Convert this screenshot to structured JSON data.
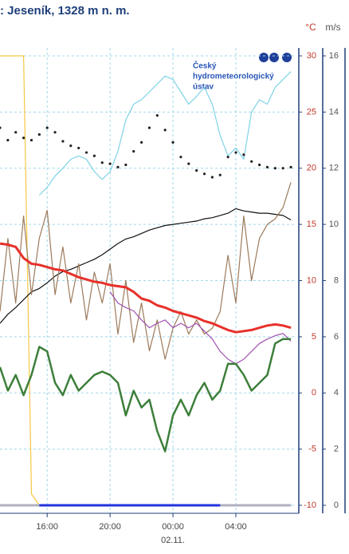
{
  "chart_data": {
    "type": "line",
    "title": ": Jeseník, 1328 m n. m.",
    "x": [
      13,
      13.5,
      14,
      14.5,
      15,
      15.5,
      16,
      16.5,
      17,
      17.5,
      18,
      18.5,
      19,
      19.5,
      20,
      20.5,
      21,
      21.5,
      22,
      22.5,
      23,
      23.5,
      24,
      24.5,
      25,
      25.5,
      26,
      26.5,
      27,
      27.5,
      28,
      28.5,
      29,
      29.5,
      30,
      30.5,
      31,
      31.5
    ],
    "xlim": [
      13,
      31.75
    ],
    "xticks": [
      {
        "value": 16,
        "label": "16:00"
      },
      {
        "value": 20,
        "label": "20:00"
      },
      {
        "value": 24,
        "label": "00:00"
      },
      {
        "value": 28,
        "label": "04:00"
      }
    ],
    "date_label": "02.11.",
    "y_unit": "°C",
    "y2_unit": "m/s",
    "ylim": [
      -10,
      30
    ],
    "yticks": [
      -10,
      -5,
      0,
      5,
      10,
      15,
      20,
      25,
      30
    ],
    "y2lim": [
      0,
      16
    ],
    "y2ticks": [
      0,
      2,
      4,
      6,
      8,
      10,
      12,
      14,
      16
    ],
    "grid": true,
    "series": [
      {
        "color": "#f5c842",
        "values": [
          30,
          30,
          30,
          30,
          -9,
          -10,
          null,
          null,
          null,
          null,
          null,
          null,
          null,
          null,
          null,
          null,
          null,
          null,
          null,
          null,
          null,
          null,
          null,
          null,
          null,
          null,
          null,
          null,
          null,
          null,
          null,
          null,
          null,
          null,
          null,
          null,
          null,
          null
        ]
      },
      {
        "color": "#7fd3e6",
        "values": [
          null,
          null,
          null,
          null,
          null,
          17.6,
          18.3,
          19.3,
          20.0,
          20.8,
          21.1,
          20.8,
          19.7,
          19.0,
          19.7,
          21.5,
          24.3,
          25.7,
          26.1,
          26.8,
          27.5,
          28.2,
          27.9,
          26.8,
          25.7,
          26.4,
          27.2,
          25.7,
          22.9,
          21.1,
          21.8,
          20.8,
          25.0,
          26.1,
          25.7,
          27.2,
          27.9,
          28.6
        ]
      },
      {
        "color": "#222222",
        "style": "dots",
        "values": [
          23.6,
          22.5,
          23.2,
          22.7,
          22.5,
          23.0,
          23.6,
          23.2,
          22.4,
          22.0,
          21.8,
          21.4,
          21.1,
          20.5,
          20.4,
          20.1,
          20.3,
          21.5,
          22.3,
          23.6,
          24.7,
          23.4,
          22.3,
          21.0,
          20.4,
          19.8,
          19.5,
          19.2,
          19.4,
          21.0,
          21.4,
          21.2,
          20.6,
          20.3,
          20.1,
          20.0,
          20.0,
          20.1
        ]
      },
      {
        "color": "#111111",
        "values": [
          6.2,
          7.0,
          7.6,
          8.3,
          9.0,
          9.3,
          9.8,
          10.4,
          10.8,
          11.0,
          11.3,
          11.6,
          11.9,
          12.3,
          12.8,
          13.3,
          13.7,
          13.9,
          14.2,
          14.5,
          14.7,
          14.9,
          15.0,
          15.1,
          15.2,
          15.3,
          15.5,
          15.6,
          15.8,
          16.0,
          16.4,
          16.2,
          16.1,
          16.0,
          16.0,
          15.9,
          15.8,
          15.4
        ]
      },
      {
        "color": "#9c7a5b",
        "axis": "y2",
        "values": [
          6.9,
          9.5,
          7.2,
          10.3,
          7.5,
          9.5,
          10.5,
          7.5,
          9.2,
          7.2,
          8.6,
          6.6,
          8.3,
          7.2,
          8.6,
          6.1,
          8.0,
          5.8,
          7.2,
          5.5,
          6.6,
          5.2,
          6.3,
          6.9,
          6.1,
          6.6,
          6.1,
          6.3,
          6.9,
          8.9,
          7.2,
          10.3,
          8.0,
          9.5,
          10.0,
          10.2,
          10.6,
          11.5
        ]
      },
      {
        "color": "#a050b0",
        "values": [
          null,
          null,
          null,
          null,
          null,
          null,
          null,
          null,
          null,
          null,
          null,
          null,
          null,
          null,
          9.0,
          8.0,
          7.6,
          7.3,
          6.5,
          5.8,
          6.2,
          6.5,
          5.8,
          6.2,
          5.8,
          6.2,
          5.5,
          4.8,
          3.7,
          3.0,
          2.6,
          3.0,
          3.7,
          4.4,
          4.8,
          5.1,
          5.3,
          4.6
        ]
      },
      {
        "color": "#e8302a",
        "width": 3,
        "values": [
          13.3,
          13.2,
          13.0,
          12.0,
          11.5,
          11.4,
          11.2,
          11.0,
          10.9,
          10.6,
          10.3,
          10.1,
          9.9,
          9.8,
          9.6,
          9.5,
          9.4,
          9.0,
          8.4,
          8.2,
          7.8,
          7.6,
          7.3,
          7.1,
          6.9,
          6.7,
          6.4,
          6.2,
          5.9,
          5.6,
          5.4,
          5.5,
          5.6,
          5.8,
          6.0,
          6.1,
          6.0,
          5.8
        ]
      },
      {
        "color": "#3d7f3a",
        "width": 2.5,
        "values": [
          2.3,
          0.2,
          1.6,
          -0.2,
          1.6,
          4.1,
          3.7,
          0.9,
          -0.2,
          1.6,
          0.2,
          0.9,
          1.6,
          1.9,
          1.6,
          0.9,
          -2.0,
          0.2,
          -1.3,
          -0.6,
          -3.4,
          -5.2,
          -2.0,
          -0.6,
          -2.0,
          -0.2,
          0.9,
          -0.6,
          0.2,
          2.6,
          2.6,
          1.6,
          0.2,
          0.9,
          1.6,
          4.4,
          4.8,
          4.8
        ]
      },
      {
        "color": "#2233dd",
        "width": 3,
        "values": [
          -10,
          -10,
          -10,
          -10,
          -10,
          -10,
          -10,
          -10,
          -10,
          -10,
          -10,
          -10,
          -10,
          -10,
          -10,
          -10,
          -10,
          -10,
          -10,
          -10,
          -10,
          -10,
          -10,
          -10,
          -10,
          -10,
          -10,
          -10,
          -10,
          -10,
          -10,
          -10,
          -10,
          -10,
          -10,
          -10,
          -10,
          -10
        ]
      },
      {
        "color": "#b0b0c0",
        "width": 3,
        "values": [
          -10,
          -10,
          -10,
          -10,
          -10,
          -10,
          null,
          null,
          null,
          null,
          null,
          null,
          null,
          null,
          null,
          null,
          null,
          null,
          null,
          null,
          null,
          null,
          null,
          null,
          null,
          null,
          null,
          null,
          -10,
          -10,
          -10,
          -10,
          -10,
          -10,
          -10,
          -10,
          -10,
          -10
        ]
      }
    ]
  },
  "logo": {
    "lines": [
      "Český",
      "hydrometeorologický",
      "ústav"
    ]
  }
}
